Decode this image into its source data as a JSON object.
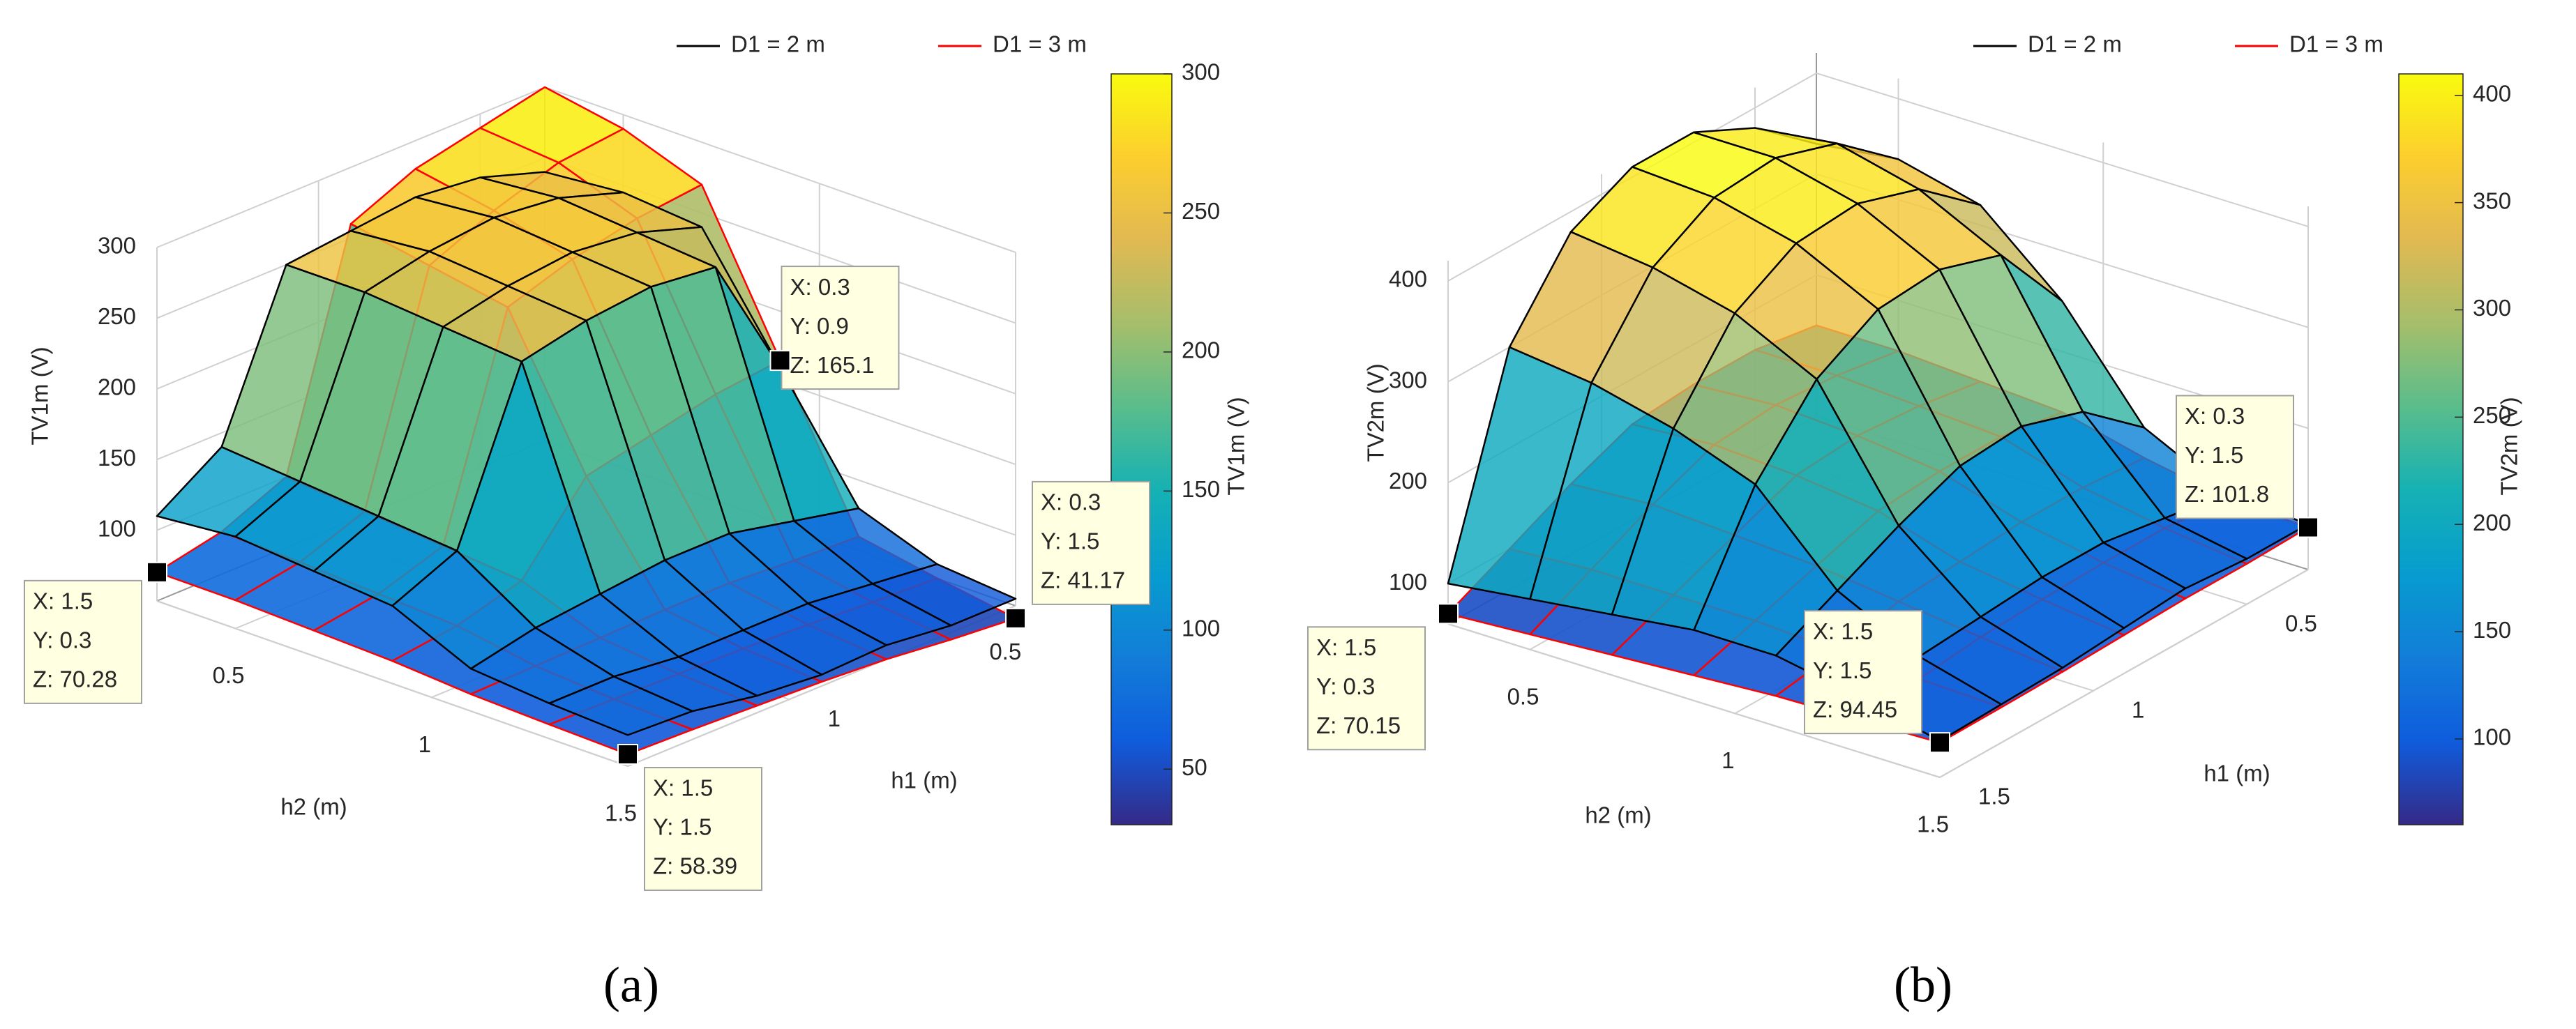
{
  "chart_data": [
    {
      "type": "surface",
      "label": "(a)",
      "xlabel": "h1 (m)",
      "ylabel": "h2 (m)",
      "zlabel": "TV1m (V)",
      "colorbar_label": "TV1m (V)",
      "x": [
        0.3,
        0.5,
        0.7,
        0.9,
        1.1,
        1.3,
        1.5
      ],
      "y": [
        0.3,
        0.5,
        0.7,
        0.9,
        1.1,
        1.3,
        1.5
      ],
      "xlim": [
        0.3,
        1.5
      ],
      "ylim": [
        0.3,
        1.5
      ],
      "zlim": [
        50,
        300
      ],
      "xticks": [
        0.5,
        1,
        1.5
      ],
      "yticks": [
        0.5,
        1,
        1.5
      ],
      "zticks": [
        100,
        150,
        200,
        250,
        300
      ],
      "clim": [
        30,
        300
      ],
      "cticks": [
        50,
        100,
        150,
        200,
        250,
        300
      ],
      "series": [
        {
          "name": "D1 = 2 m",
          "color": "#000000",
          "z": [
            [
              240,
              255,
              260,
              255,
              250,
              140,
              110
            ],
            [
              245,
              260,
              265,
              260,
              250,
              135,
              115
            ],
            [
              240,
              255,
              260,
              255,
              245,
              130,
              110
            ],
            [
              160,
              250,
              255,
              250,
              240,
              125,
              105
            ],
            [
              80,
              90,
              100,
              100,
              95,
              90,
              80
            ],
            [
              60,
              65,
              70,
              70,
              70,
              75,
              75
            ],
            [
              55,
              55,
              60,
              58,
              62,
              70,
              72
            ]
          ]
        },
        {
          "name": "D1 = 3 m",
          "color": "#ff0000",
          "z": [
            [
              300,
              290,
              280,
              260,
              100,
              80,
              70.28
            ],
            [
              290,
              285,
              270,
              250,
              95,
              78,
              70
            ],
            [
              270,
              265,
              255,
              240,
              90,
              75,
              68
            ],
            [
              165.1,
              160,
              150,
              140,
              85,
              72,
              66
            ],
            [
              60,
              62,
              65,
              65,
              64,
              63,
              62
            ],
            [
              50,
              52,
              55,
              57,
              58,
              59,
              60
            ],
            [
              41.17,
              45,
              50,
              53,
              55,
              57,
              58.39
            ]
          ]
        }
      ],
      "datatips": [
        {
          "x": 1.5,
          "y": 0.3,
          "z": 70.28,
          "labels": [
            "X: 1.5",
            "Y: 0.3",
            "Z: 70.28"
          ]
        },
        {
          "x": 0.3,
          "y": 0.9,
          "z": 165.1,
          "labels": [
            "X: 0.3",
            "Y: 0.9",
            "Z: 165.1"
          ]
        },
        {
          "x": 0.3,
          "y": 1.5,
          "z": 41.17,
          "labels": [
            "X: 0.3",
            "Y: 1.5",
            "Z: 41.17"
          ]
        },
        {
          "x": 1.5,
          "y": 1.5,
          "z": 58.39,
          "labels": [
            "X: 1.5",
            "Y: 1.5",
            "Z: 58.39"
          ]
        }
      ]
    },
    {
      "type": "surface",
      "label": "(b)",
      "xlabel": "h1 (m)",
      "ylabel": "h2 (m)",
      "zlabel": "TV2m (V)",
      "colorbar_label": "TV2m (V)",
      "x": [
        0.3,
        0.5,
        0.7,
        0.9,
        1.1,
        1.3,
        1.5
      ],
      "y": [
        0.3,
        0.5,
        0.7,
        0.9,
        1.1,
        1.3,
        1.5
      ],
      "xlim": [
        0.3,
        1.5
      ],
      "ylim": [
        0.3,
        1.5
      ],
      "zlim": [
        60,
        420
      ],
      "xticks": [
        0.5,
        1,
        1.5
      ],
      "yticks": [
        0.5,
        1,
        1.5
      ],
      "zticks": [
        100,
        200,
        300,
        400
      ],
      "clim": [
        60,
        410
      ],
      "cticks": [
        100,
        150,
        200,
        250,
        300,
        350,
        400
      ],
      "series": [
        {
          "name": "D1 = 2 m",
          "color": "#000000",
          "z": [
            [
              330,
              380,
              410,
              410,
              380,
              300,
              100
            ],
            [
              340,
              390,
              410,
              405,
              370,
              290,
              110
            ],
            [
              320,
              370,
              390,
              385,
              350,
              270,
              120
            ],
            [
              250,
              330,
              350,
              345,
              310,
              240,
              130
            ],
            [
              150,
              200,
              220,
              215,
              190,
              160,
              130
            ],
            [
              110,
              120,
              130,
              130,
              125,
              120,
              115
            ],
            [
              105,
              105,
              110,
              105,
              100,
              98,
              96
            ]
          ]
        },
        {
          "name": "D1 = 3 m",
          "color": "#ff0000",
          "z": [
            [
              150,
              160,
              160,
              155,
              130,
              100,
              70.15
            ],
            [
              150,
              160,
              165,
              160,
              135,
              105,
              75
            ],
            [
              145,
              155,
              160,
              155,
              130,
              105,
              80
            ],
            [
              140,
              150,
              150,
              145,
              125,
              105,
              85
            ],
            [
              120,
              125,
              125,
              120,
              115,
              100,
              90
            ],
            [
              105,
              110,
              110,
              108,
              105,
              98,
              92
            ],
            [
              101.8,
              100,
              100,
              98,
              96,
              95,
              94.45
            ]
          ]
        }
      ],
      "datatips": [
        {
          "x": 1.5,
          "y": 0.3,
          "z": 70.15,
          "labels": [
            "X: 1.5",
            "Y: 0.3",
            "Z: 70.15"
          ]
        },
        {
          "x": 1.5,
          "y": 1.5,
          "z": 94.45,
          "labels": [
            "X: 1.5",
            "Y: 1.5",
            "Z: 94.45"
          ]
        },
        {
          "x": 0.3,
          "y": 1.5,
          "z": 101.8,
          "labels": [
            "X: 0.3",
            "Y: 1.5",
            "Z: 101.8"
          ]
        }
      ]
    }
  ]
}
